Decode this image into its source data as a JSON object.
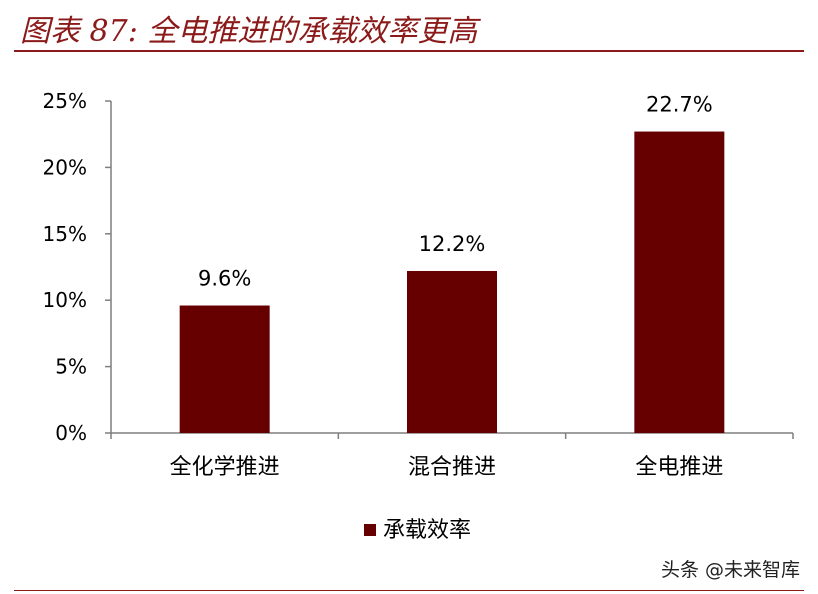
{
  "figure_title": "图表 87: 全电推进的承载效率更高",
  "watermark": "头条 @未来智库",
  "chart_data": {
    "type": "bar",
    "categories": [
      "全化学推进",
      "混合推进",
      "全电推进"
    ],
    "series": [
      {
        "name": "承载效率",
        "values": [
          9.6,
          12.2,
          22.7
        ],
        "color": "#660000"
      }
    ],
    "data_labels": [
      "9.6%",
      "12.2%",
      "22.7%"
    ],
    "yticks": [
      "0%",
      "5%",
      "10%",
      "15%",
      "20%",
      "25%"
    ],
    "ylim": [
      0,
      25
    ],
    "xlabel": "",
    "ylabel": "",
    "legend_position": "bottom-center",
    "grid": false
  }
}
